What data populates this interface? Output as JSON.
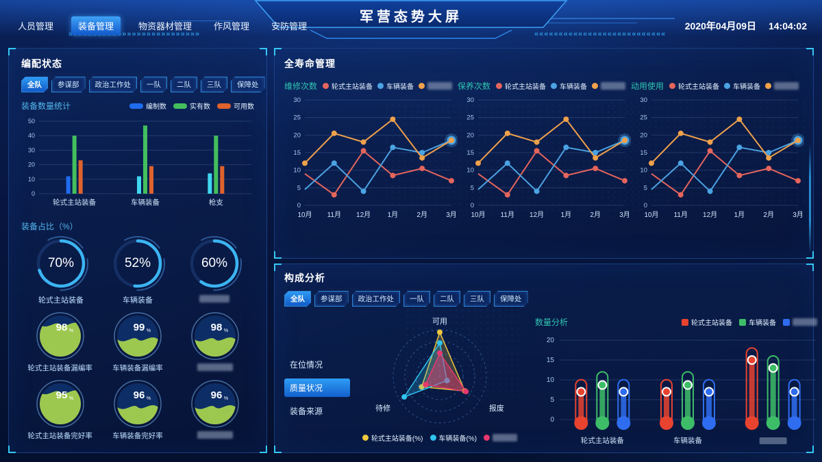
{
  "header": {
    "nav": [
      {
        "label": "人员管理",
        "active": false
      },
      {
        "label": "装备管理",
        "active": true
      },
      {
        "label": "物资器材管理",
        "active": false
      },
      {
        "label": "作风管理",
        "active": false
      },
      {
        "label": "安防管理",
        "active": false
      }
    ],
    "title": "军营态势大屏",
    "date": "2020年04月09日",
    "time": "14:04:02",
    "arrows_left": "»»»»»»»»»»»»»»»»»»»»»»»»»»»",
    "arrows_right": "«««««««««««««««««««««««««««"
  },
  "tabs": [
    "全队",
    "参谋部",
    "政治工作处",
    "一队",
    "二队",
    "三队",
    "保障处"
  ],
  "active_tab": "全队",
  "colors": {
    "accent_cyan": "#35c8f5",
    "tab_border": "#2e86d8",
    "panel_border": "#2e68c4"
  },
  "allocation": {
    "title": "编配状态",
    "stats_title": "装备数量统计",
    "ratio_title": "装备占比（%）",
    "rings": [
      {
        "value": "70%",
        "label": "轮式主站装备",
        "redacted": false
      },
      {
        "value": "52%",
        "label": "车辆装备",
        "redacted": false
      },
      {
        "value": "60%",
        "label": null,
        "redacted": true
      }
    ],
    "gauges": [
      {
        "value": "98",
        "unit": "%",
        "label": "轮式主站装备漏编率",
        "redacted": false,
        "fill": 0.78
      },
      {
        "value": "99",
        "unit": "%",
        "label": "车辆装备漏编率",
        "redacted": false,
        "fill": 0.42
      },
      {
        "value": "98",
        "unit": "%",
        "label": null,
        "redacted": true,
        "fill": 0.42
      },
      {
        "value": "95",
        "unit": "%",
        "label": "轮式主站装备完好率",
        "redacted": false,
        "fill": 0.78
      },
      {
        "value": "96",
        "unit": "%",
        "label": "车辆装备完好率",
        "redacted": false,
        "fill": 0.42
      },
      {
        "value": "96",
        "unit": "%",
        "label": null,
        "redacted": true,
        "fill": 0.42
      }
    ]
  },
  "lifecycle": {
    "title": "全寿命管理"
  },
  "composition": {
    "title": "构成分析",
    "side_menu": [
      {
        "label": "在位情况",
        "active": false
      },
      {
        "label": "质量状况",
        "active": true
      },
      {
        "label": "装备来源",
        "active": false
      }
    ]
  },
  "chart_data": [
    {
      "id": "equip_count",
      "type": "bar",
      "title": "装备数量统计",
      "categories": [
        "轮式主站装备",
        "车辆装备",
        "枪支"
      ],
      "ylim": [
        0,
        50
      ],
      "yticks": [
        0,
        10,
        20,
        30,
        40,
        50
      ],
      "grid": true,
      "series": [
        {
          "name": "编制数",
          "legend_color": "#1f6cf0",
          "colors": [
            "#1f6cf0",
            "#3fd6f0",
            "#3fd6f0"
          ],
          "values": [
            12,
            12,
            14
          ]
        },
        {
          "name": "实有数",
          "legend_color": "#43bf5e",
          "colors": [
            "#43bf5e",
            "#43bf5e",
            "#43bf5e"
          ],
          "values": [
            40,
            47,
            40
          ]
        },
        {
          "name": "可用数",
          "legend_color": "#e0622d",
          "colors": [
            "#e0622d",
            "#e0622d",
            "#e0622d"
          ],
          "values": [
            23,
            19,
            19
          ]
        }
      ]
    },
    {
      "id": "repair",
      "type": "line",
      "title": "维修次数",
      "x": [
        "10月",
        "11月",
        "12月",
        "1月",
        "2月",
        "3月"
      ],
      "ylim": [
        0,
        30
      ],
      "yticks": [
        0,
        5,
        10,
        15,
        20,
        25,
        30
      ],
      "grid": true,
      "series": [
        {
          "name": "轮式主站装备",
          "color": "#e5655c",
          "values": [
            9,
            3,
            15.5,
            8.5,
            10.5,
            7
          ],
          "start_marker": false
        },
        {
          "name": "车辆装备",
          "color": "#4ba3e3",
          "values": [
            4.5,
            12,
            4,
            16.5,
            15,
            18.5
          ],
          "start_marker": false,
          "end_big": true
        },
        {
          "name": null,
          "redacted": true,
          "color": "#f0a14b",
          "values": [
            12,
            20.5,
            18,
            24.5,
            13.5,
            18.5
          ]
        }
      ]
    },
    {
      "id": "maintain",
      "type": "line",
      "title": "保养次数",
      "x": [
        "10月",
        "11月",
        "12月",
        "1月",
        "2月",
        "3月"
      ],
      "ylim": [
        0,
        30
      ],
      "yticks": [
        0,
        5,
        10,
        15,
        20,
        25,
        30
      ],
      "grid": true,
      "series": [
        {
          "name": "轮式主站装备",
          "color": "#e5655c",
          "values": [
            9,
            3,
            15.5,
            8.5,
            10.5,
            7
          ],
          "start_marker": false
        },
        {
          "name": "车辆装备",
          "color": "#4ba3e3",
          "values": [
            4.5,
            12,
            4,
            16.5,
            15,
            18.5
          ],
          "start_marker": false,
          "end_big": true
        },
        {
          "name": null,
          "redacted": true,
          "color": "#f0a14b",
          "values": [
            12,
            20.5,
            18,
            24.5,
            13.5,
            18.5
          ]
        }
      ]
    },
    {
      "id": "usage",
      "type": "line",
      "title": "动用使用",
      "x": [
        "10月",
        "11月",
        "12月",
        "1月",
        "2月",
        "3月"
      ],
      "ylim": [
        0,
        30
      ],
      "yticks": [
        0,
        5,
        10,
        15,
        20,
        25,
        30
      ],
      "grid": true,
      "series": [
        {
          "name": "轮式主站装备",
          "color": "#e5655c",
          "values": [
            9,
            3,
            15.5,
            8.5,
            10.5,
            7
          ],
          "start_marker": false
        },
        {
          "name": "车辆装备",
          "color": "#4ba3e3",
          "values": [
            4.5,
            12,
            4,
            16.5,
            15,
            18.5
          ],
          "start_marker": false,
          "end_big": true
        },
        {
          "name": null,
          "redacted": true,
          "color": "#f0a14b",
          "values": [
            12,
            20.5,
            18,
            24.5,
            13.5,
            18.5
          ]
        }
      ]
    },
    {
      "id": "quality_radar",
      "type": "radar",
      "axes": [
        "可用",
        "报废",
        "待修"
      ],
      "max": 100,
      "rings": 4,
      "series": [
        {
          "name": "轮式主站装备(%)",
          "color": "#f0c83c",
          "values": [
            95,
            62,
            45
          ]
        },
        {
          "name": "车辆装备(%)",
          "color": "#2fc3f0",
          "values": [
            72,
            18,
            88
          ]
        },
        {
          "name": null,
          "redacted": true,
          "color": "#e8386e",
          "values": [
            50,
            65,
            35
          ]
        }
      ]
    },
    {
      "id": "quantity",
      "type": "thermometer",
      "title": "数量分析",
      "categories": [
        "轮式主站装备",
        "车辆装备",
        null
      ],
      "category_redacted": [
        false,
        false,
        true
      ],
      "ylim": [
        0,
        20
      ],
      "yticks": [
        0,
        5,
        10,
        15,
        20
      ],
      "grid": true,
      "series": [
        {
          "name": "轮式主站装备",
          "color": "#e8432f",
          "outline": [
            9,
            9,
            17
          ],
          "dot": [
            7,
            7,
            15
          ]
        },
        {
          "name": "车辆装备",
          "color": "#3dbd67",
          "outline": [
            11,
            11,
            15
          ],
          "dot": [
            8.7,
            8.7,
            13
          ]
        },
        {
          "name": null,
          "redacted": true,
          "color": "#2f6df0",
          "outline": [
            9,
            9,
            9
          ],
          "dot": [
            7,
            7,
            7
          ]
        }
      ]
    }
  ]
}
